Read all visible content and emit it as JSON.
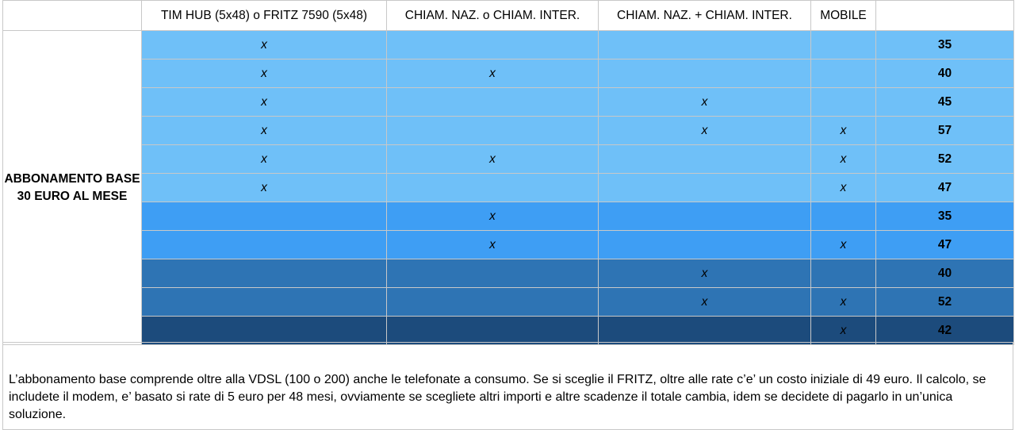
{
  "headers": [
    "",
    "TIM HUB (5x48) o FRITZ 7590 (5x48)",
    "CHIAM. NAZ. o CHIAM. INTER.",
    "CHIAM. NAZ. + CHIAM. INTER.",
    "MOBILE",
    ""
  ],
  "row_label": "ABBONAMENTO BASE 30 EURO AL MESE",
  "rows": [
    {
      "shade": "c1",
      "cells": [
        "x",
        "",
        "",
        ""
      ],
      "price": "35"
    },
    {
      "shade": "c1",
      "cells": [
        "x",
        "x",
        "",
        ""
      ],
      "price": "40"
    },
    {
      "shade": "c1",
      "cells": [
        "x",
        "",
        "x",
        ""
      ],
      "price": "45"
    },
    {
      "shade": "c1",
      "cells": [
        "x",
        "",
        "x",
        "x"
      ],
      "price": "57"
    },
    {
      "shade": "c1",
      "cells": [
        "x",
        "x",
        "",
        "x"
      ],
      "price": "52"
    },
    {
      "shade": "c1",
      "cells": [
        "x",
        "",
        "",
        "x"
      ],
      "price": "47"
    },
    {
      "shade": "c2",
      "cells": [
        "",
        "x",
        "",
        ""
      ],
      "price": "35"
    },
    {
      "shade": "c2",
      "cells": [
        "",
        "x",
        "",
        "x"
      ],
      "price": "47"
    },
    {
      "shade": "c3",
      "cells": [
        "",
        "",
        "x",
        ""
      ],
      "price": "40"
    },
    {
      "shade": "c3",
      "cells": [
        "",
        "",
        "x",
        "x"
      ],
      "price": "52"
    },
    {
      "shade": "c4",
      "cells": [
        "",
        "",
        "",
        "x"
      ],
      "price": "42"
    }
  ],
  "colors": {
    "light": "#6fc0f8",
    "medium": "#3e9ef4",
    "dark": "#2e74b4",
    "darkest": "#1c4b7c"
  },
  "note": "L’abbonamento base comprende oltre alla VDSL (100 o 200) anche le telefonate a consumo. Se si sceglie il FRITZ, oltre alle rate c’e’ un costo iniziale di 49 euro. Il calcolo, se includete il modem, e’ basato si rate di 5 euro per 48 mesi, ovviamente se scegliete altri importi e altre scadenze il totale cambia, idem se decidete di pagarlo in un’unica soluzione."
}
